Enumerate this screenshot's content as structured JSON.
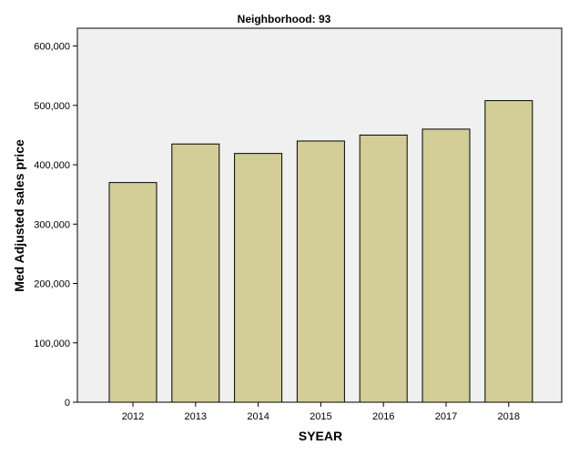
{
  "chart_data": {
    "type": "bar",
    "title": "Neighborhood: 93",
    "xlabel": "SYEAR",
    "ylabel": "Med Adjusted sales price",
    "categories": [
      "2012",
      "2013",
      "2014",
      "2015",
      "2016",
      "2017",
      "2018"
    ],
    "values": [
      370000,
      435000,
      419000,
      440000,
      450000,
      460000,
      508000
    ],
    "ylim": [
      0,
      630000
    ],
    "yticks": [
      0,
      100000,
      200000,
      300000,
      400000,
      500000,
      600000
    ],
    "ytick_labels": [
      "0",
      "100,000",
      "200,000",
      "300,000",
      "400,000",
      "500,000",
      "600,000"
    ],
    "grid": false,
    "legend": "none",
    "colors": {
      "bar_fill": "#d3ce97",
      "bar_stroke": "#000000",
      "plot_background": "#f0f0f0",
      "page_background": "#ffffff"
    }
  }
}
